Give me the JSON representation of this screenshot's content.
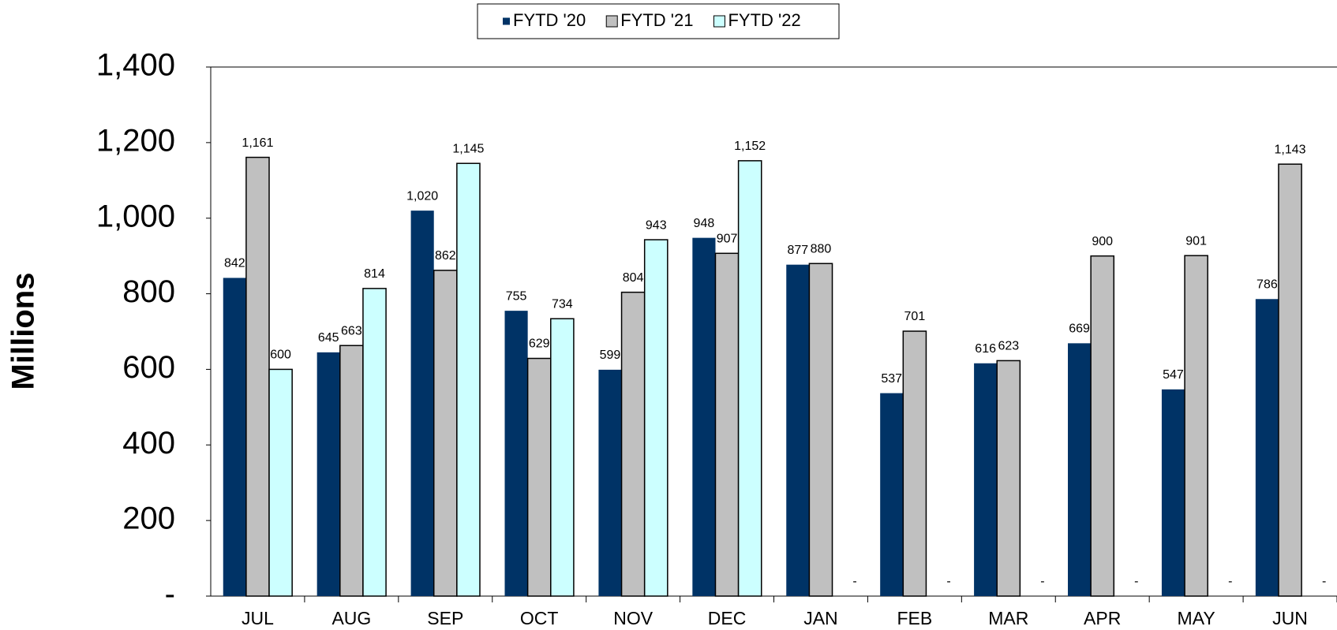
{
  "chart_data": {
    "type": "bar",
    "y_axis_label": "Millions",
    "categories": [
      "JUL",
      "AUG",
      "SEP",
      "OCT",
      "NOV",
      "DEC",
      "JAN",
      "FEB",
      "MAR",
      "APR",
      "MAY",
      "JUN"
    ],
    "series": [
      {
        "name": "FYTD '20",
        "color": "#003366",
        "values": [
          842,
          645,
          1020,
          755,
          599,
          948,
          877,
          537,
          616,
          669,
          547,
          786
        ],
        "value_labels": [
          "842",
          "645",
          "1,020",
          "755",
          "599",
          "948",
          "877",
          "537",
          "616",
          "669",
          "547",
          "786"
        ]
      },
      {
        "name": "FYTD '21",
        "color": "#c0c0c0",
        "values": [
          1161,
          663,
          862,
          629,
          804,
          907,
          880,
          701,
          623,
          900,
          901,
          1143
        ],
        "value_labels": [
          "1,161",
          "663",
          "862",
          "629",
          "804",
          "907",
          "880",
          "701",
          "623",
          "900",
          "901",
          "1,143"
        ]
      },
      {
        "name": "FYTD '22",
        "color": "#ccffff",
        "values": [
          600,
          814,
          1145,
          734,
          943,
          1152,
          0,
          0,
          0,
          0,
          0,
          0
        ],
        "value_labels": [
          "600",
          "814",
          "1,145",
          "734",
          "943",
          "1,152",
          "-",
          "-",
          "-",
          "-",
          "-",
          "-"
        ]
      }
    ],
    "ylim": [
      0,
      1400
    ],
    "yticks": [
      {
        "value": 0,
        "label": "-"
      },
      200,
      400,
      600,
      800,
      {
        "value": 1000,
        "label": "1,000"
      },
      {
        "value": 1200,
        "label": "1,200"
      },
      {
        "value": 1400,
        "label": "1,400"
      }
    ],
    "legend": "top"
  }
}
